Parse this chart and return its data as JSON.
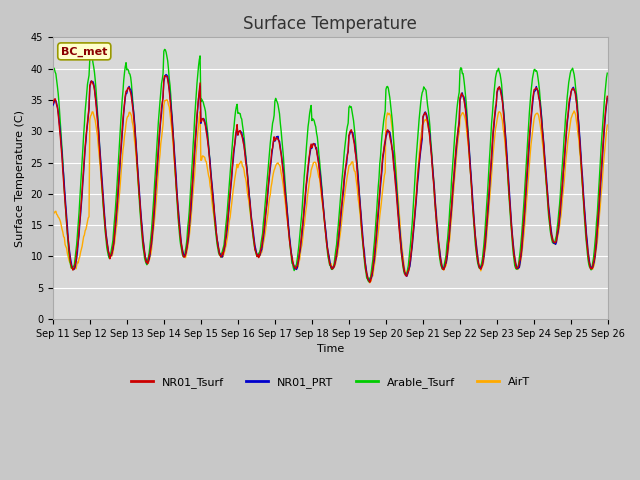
{
  "title": "Surface Temperature",
  "xlabel": "Time",
  "ylabel": "Surface Temperature (C)",
  "annotation": "BC_met",
  "ylim": [
    0,
    45
  ],
  "yticks": [
    0,
    5,
    10,
    15,
    20,
    25,
    30,
    35,
    40,
    45
  ],
  "legend": [
    "NR01_Tsurf",
    "NR01_PRT",
    "Arable_Tsurf",
    "AirT"
  ],
  "colors": [
    "#cc0000",
    "#0000cc",
    "#00cc00",
    "#ffaa00"
  ],
  "line_width": 1.0,
  "figure_bg": "#c8c8c8",
  "plot_bg": "#d8d8d8",
  "days": 15,
  "points_per_day": 48,
  "start_day": 11,
  "daily_min_base": [
    8,
    10,
    9,
    10,
    10,
    10,
    8,
    8,
    6,
    7,
    8,
    8,
    8,
    12,
    8
  ],
  "daily_max_NR01": [
    35,
    38,
    37,
    39,
    32,
    30,
    29,
    28,
    30,
    30,
    33,
    36,
    37,
    37,
    37
  ],
  "daily_max_PRT": [
    35,
    38,
    37,
    39,
    32,
    30,
    29,
    28,
    30,
    30,
    33,
    36,
    37,
    37,
    37
  ],
  "daily_max_Arable": [
    40,
    42,
    40,
    43,
    35,
    33,
    35,
    32,
    34,
    37,
    37,
    40,
    40,
    40,
    40
  ],
  "daily_max_Air": [
    17,
    33,
    33,
    35,
    26,
    25,
    25,
    25,
    25,
    33,
    32,
    33,
    33,
    33,
    33
  ],
  "title_fontsize": 12,
  "tick_fontsize": 7,
  "label_fontsize": 8,
  "legend_fontsize": 8
}
